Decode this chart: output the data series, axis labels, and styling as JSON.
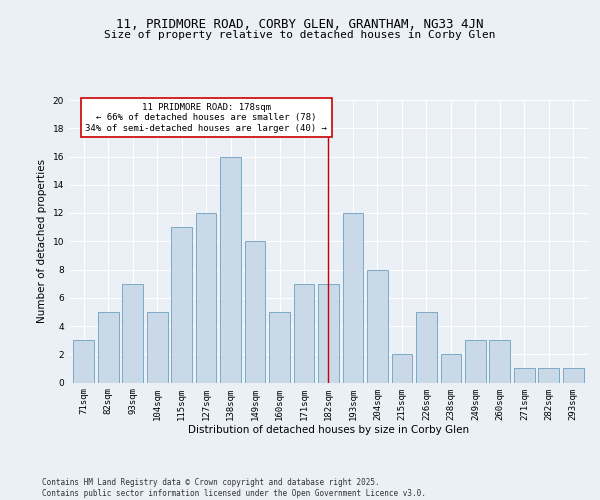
{
  "title1": "11, PRIDMORE ROAD, CORBY GLEN, GRANTHAM, NG33 4JN",
  "title2": "Size of property relative to detached houses in Corby Glen",
  "xlabel": "Distribution of detached houses by size in Corby Glen",
  "ylabel": "Number of detached properties",
  "categories": [
    "71sqm",
    "82sqm",
    "93sqm",
    "104sqm",
    "115sqm",
    "127sqm",
    "138sqm",
    "149sqm",
    "160sqm",
    "171sqm",
    "182sqm",
    "193sqm",
    "204sqm",
    "215sqm",
    "226sqm",
    "238sqm",
    "249sqm",
    "260sqm",
    "271sqm",
    "282sqm",
    "293sqm"
  ],
  "values": [
    3,
    5,
    7,
    5,
    11,
    12,
    16,
    10,
    5,
    7,
    7,
    12,
    8,
    2,
    5,
    2,
    3,
    3,
    1,
    1,
    1
  ],
  "bar_color": "#c9d9e8",
  "bar_edge_color": "#6a9fc0",
  "highlight_index": 10,
  "annotation_text": "11 PRIDMORE ROAD: 178sqm\n← 66% of detached houses are smaller (78)\n34% of semi-detached houses are larger (40) →",
  "annotation_box_color": "#ffffff",
  "annotation_box_edge": "#cc0000",
  "highlight_line_color": "#cc0000",
  "ylim": [
    0,
    20
  ],
  "yticks": [
    0,
    2,
    4,
    6,
    8,
    10,
    12,
    14,
    16,
    18,
    20
  ],
  "bg_color": "#eaf0f6",
  "plot_bg_color": "#eaf0f6",
  "footer": "Contains HM Land Registry data © Crown copyright and database right 2025.\nContains public sector information licensed under the Open Government Licence v3.0.",
  "grid_color": "#ffffff",
  "title1_fontsize": 9,
  "title2_fontsize": 8,
  "axis_label_fontsize": 7.5,
  "tick_fontsize": 6.5,
  "annotation_fontsize": 6.5,
  "footer_fontsize": 5.5
}
